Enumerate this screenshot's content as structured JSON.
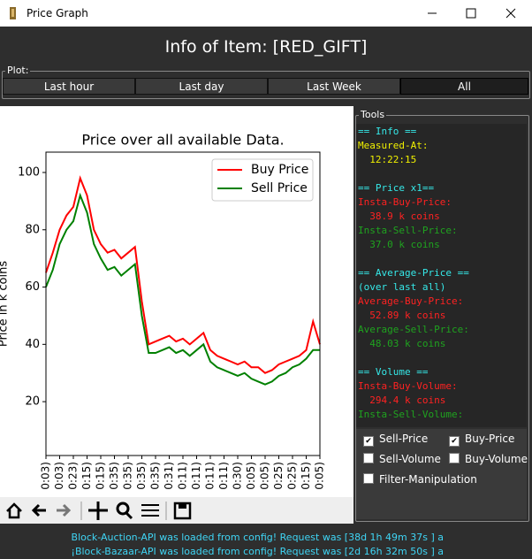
{
  "window": {
    "title": "Price Graph"
  },
  "heading": "Info of Item: [RED_GIFT]",
  "plot_group": {
    "label": "Plot:",
    "buttons": [
      "Last hour",
      "Last day",
      "Last Week",
      "All"
    ]
  },
  "chart_data": {
    "type": "line",
    "title": "Price over all available Data.",
    "y_label": "Price in k coins",
    "x": [
      0,
      1,
      2,
      3,
      4,
      5,
      6,
      7,
      8,
      9,
      10,
      11,
      12,
      13,
      14,
      15,
      16,
      17,
      18,
      19,
      20,
      21,
      22,
      23,
      24,
      25,
      26,
      27,
      28,
      29,
      30,
      31,
      32,
      33,
      34,
      35,
      36,
      37,
      38,
      39,
      40
    ],
    "series": [
      {
        "name": "Buy Price",
        "color": "#ff0000",
        "values": [
          65,
          72,
          80,
          85,
          88,
          98,
          92,
          80,
          75,
          72,
          73,
          70,
          72,
          74,
          55,
          40,
          41,
          42,
          43,
          41,
          42,
          40,
          42,
          44,
          38,
          36,
          35,
          34,
          33,
          34,
          32,
          32,
          30,
          31,
          33,
          34,
          35,
          36,
          38,
          48,
          40
        ]
      },
      {
        "name": "Sell Price",
        "color": "#008000",
        "values": [
          60,
          66,
          75,
          80,
          83,
          92,
          86,
          75,
          70,
          66,
          67,
          64,
          66,
          68,
          50,
          37,
          37,
          38,
          39,
          37,
          38,
          36,
          38,
          40,
          34,
          32,
          31,
          30,
          29,
          30,
          28,
          27,
          26,
          27,
          29,
          30,
          32,
          33,
          35,
          38,
          38
        ]
      }
    ],
    "xlim": [
      0,
      40
    ],
    "xticks": [
      {
        "value": 0,
        "label": "0:03)"
      },
      {
        "value": 2,
        "label": "0:03)"
      },
      {
        "value": 4,
        "label": "0:23)"
      },
      {
        "value": 6,
        "label": "0:15)"
      },
      {
        "value": 8,
        "label": "0:15)"
      },
      {
        "value": 10,
        "label": "0:35)"
      },
      {
        "value": 12,
        "label": "0:35)"
      },
      {
        "value": 14,
        "label": "0:35)"
      },
      {
        "value": 16,
        "label": "0:35)"
      },
      {
        "value": 18,
        "label": "0:31)"
      },
      {
        "value": 20,
        "label": "0:11)"
      },
      {
        "value": 22,
        "label": "0:11)"
      },
      {
        "value": 24,
        "label": "0:11)"
      },
      {
        "value": 26,
        "label": "0:11)"
      },
      {
        "value": 28,
        "label": "0:30)"
      },
      {
        "value": 30,
        "label": "0:05)"
      },
      {
        "value": 32,
        "label": "0:05)"
      },
      {
        "value": 34,
        "label": "0:25)"
      },
      {
        "value": 36,
        "label": "0:25)"
      },
      {
        "value": 38,
        "label": "0:15)"
      },
      {
        "value": 40,
        "label": "0:05)"
      }
    ],
    "ylim": [
      1.2,
      107.1
    ],
    "yticks": [
      20,
      40,
      60,
      80,
      100
    ],
    "legend": "upper right"
  },
  "tools": {
    "label": "Tools",
    "info": [
      "== Info ==",
      "Measured-At:",
      "  12:22:15",
      "== Price x1==",
      "Insta-Buy-Price:",
      "  38.9 k coins",
      "Insta-Sell-Price:",
      "  37.0 k coins",
      "== Average-Price ==",
      "(over last all)",
      "Average-Buy-Price:",
      "  52.89 k coins",
      "Average-Sell-Price:",
      "  48.03 k coins",
      "== Volume ==",
      "Insta-Buy-Volume:",
      "  294.4 k coins",
      "Insta-Sell-Volume:"
    ],
    "checkboxes": [
      "Sell-Price",
      "Buy-Price",
      "Sell-Volume",
      "Buy-Volume",
      "Filter-Manipulation"
    ]
  },
  "status": [
    "Block-Auction-API was loaded from config! Request was [38d 1h 49m 37s ] a",
    "¡Block-Bazaar-API was loaded from config! Request was [2d 16h 32m 50s ] a"
  ]
}
